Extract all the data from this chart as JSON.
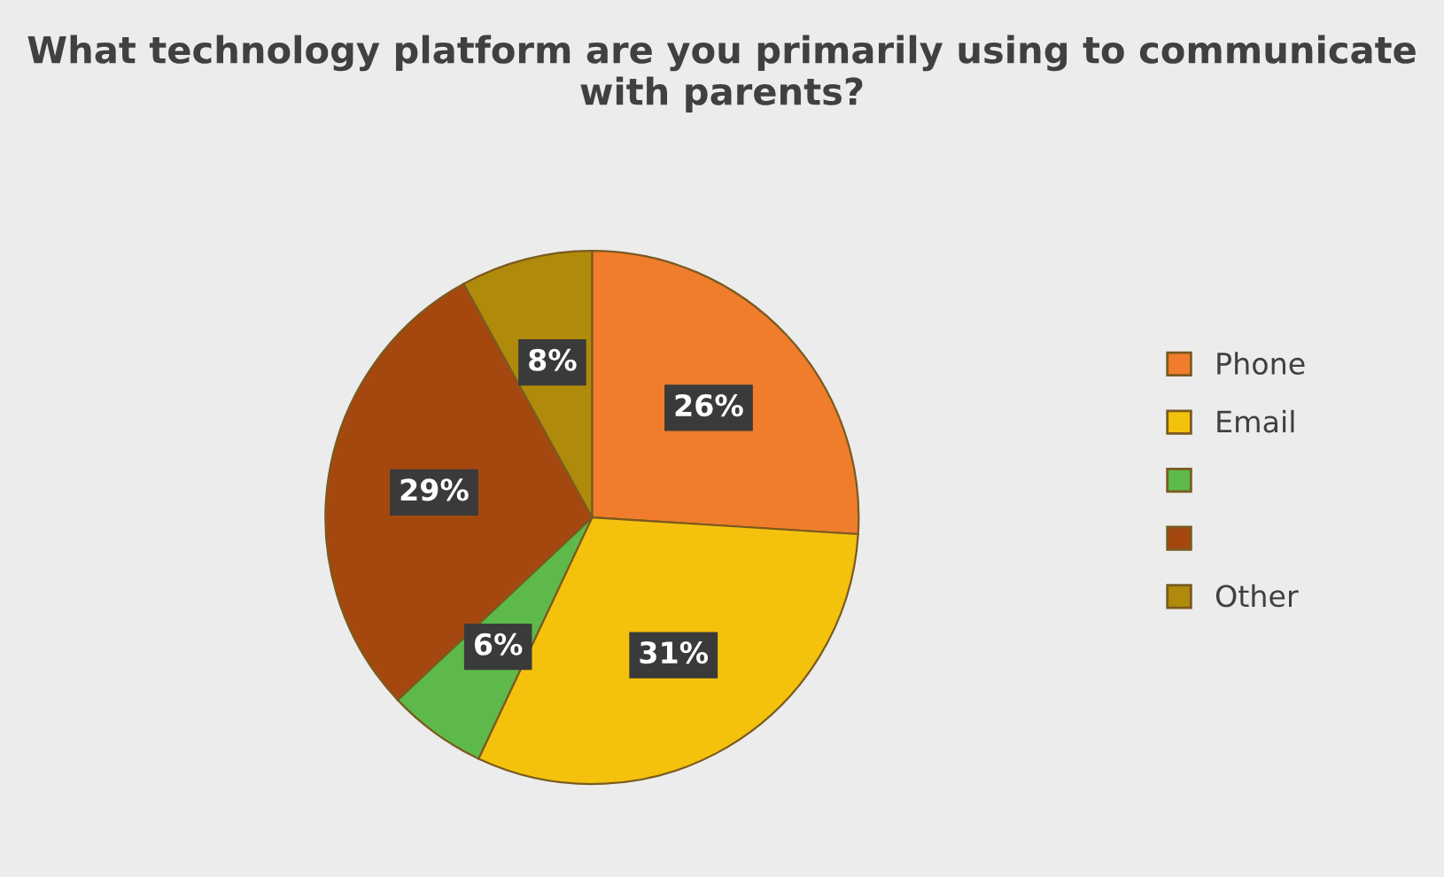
{
  "chart_data": {
    "type": "pie",
    "title": "What technology platform are you primarily using to communicate with parents?",
    "categories": [
      "Phone",
      "Email",
      null,
      null,
      "Other"
    ],
    "values": [
      26,
      31,
      6,
      29,
      8
    ],
    "value_labels": [
      "26%",
      "31%",
      "6%",
      "29%",
      "8%"
    ],
    "colors": [
      "#f07d2c",
      "#f4c20d",
      "#5dba4a",
      "#a5480f",
      "#b08a0a"
    ],
    "legend": "right"
  }
}
